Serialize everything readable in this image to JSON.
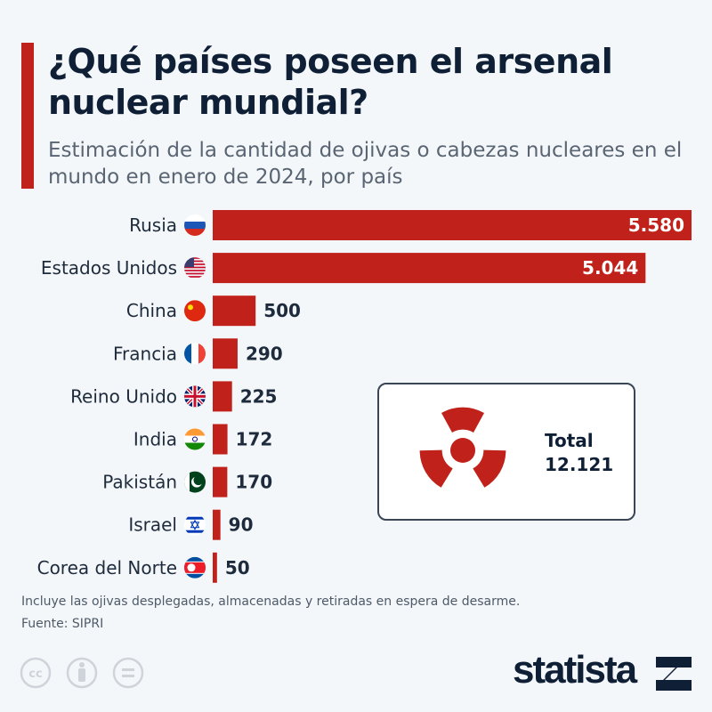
{
  "chart_data": {
    "type": "bar",
    "orientation": "horizontal",
    "title": "¿Qué países poseen el arsenal nuclear mundial?",
    "subtitle": "Estimación de la cantidad de ojivas o cabezas nucleares en el mundo en enero de 2024, por país",
    "categories": [
      "Rusia",
      "Estados Unidos",
      "China",
      "Francia",
      "Reino Unido",
      "India",
      "Pakistán",
      "Israel",
      "Corea del Norte"
    ],
    "values": [
      5580,
      5044,
      500,
      290,
      225,
      172,
      170,
      90,
      50
    ],
    "value_labels": [
      "5.580",
      "5.044",
      "500",
      "290",
      "225",
      "172",
      "170",
      "90",
      "50"
    ],
    "flags": [
      "russia-flag",
      "usa-flag",
      "china-flag",
      "france-flag",
      "uk-flag",
      "india-flag",
      "pakistan-flag",
      "israel-flag",
      "north-korea-flag"
    ],
    "xlim": [
      0,
      5580
    ],
    "grid": false,
    "bar_color": "#c0221b"
  },
  "total": {
    "label": "Total",
    "value": "12.121",
    "icon": "radiation-icon"
  },
  "note": "Incluye las ojivas desplegadas, almacenadas y retiradas en espera de desarme.",
  "source": "Fuente: SIPRI",
  "brand": "statista",
  "colors": {
    "accent": "#c0221b",
    "text": "#0f2036",
    "background": "#f4f7fa"
  }
}
